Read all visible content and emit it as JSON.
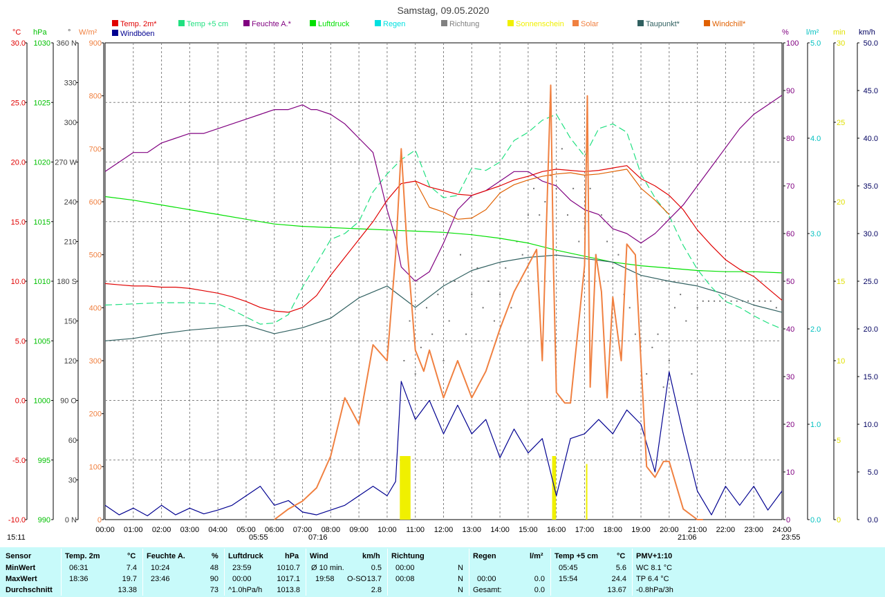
{
  "chart_data": {
    "type": "line",
    "title": "Samstag, 09.05.2020",
    "x_ticks": [
      "00:00",
      "01:00",
      "02:00",
      "03:00",
      "04:00",
      "05:00",
      "06:00",
      "07:00",
      "08:00",
      "09:00",
      "10:00",
      "11:00",
      "12:00",
      "13:00",
      "14:00",
      "15:00",
      "16:00",
      "17:00",
      "18:00",
      "19:00",
      "20:00",
      "21:00",
      "22:00",
      "23:00",
      "24:00"
    ],
    "legend": [
      {
        "name": "Temp. 2m*",
        "color": "#e00000"
      },
      {
        "name": "Temp +5 cm",
        "color": "#20e080"
      },
      {
        "name": "Feuchte A.*",
        "color": "#800080"
      },
      {
        "name": "Luftdruck",
        "color": "#00e000"
      },
      {
        "name": "Regen",
        "color": "#00e0e0"
      },
      {
        "name": "Richtung",
        "color": "#808080"
      },
      {
        "name": "Sonnenschein",
        "color": "#f0f000"
      },
      {
        "name": "Solar",
        "color": "#f08040"
      },
      {
        "name": "Taupunkt*",
        "color": "#306060"
      },
      {
        "name": "Windchill*",
        "color": "#e06000"
      },
      {
        "name": "Windböen",
        "color": "#000090"
      }
    ],
    "axes": {
      "temp": {
        "unit": "°C",
        "color": "#e00000",
        "min": -10,
        "max": 30,
        "ticks": [
          "30.0",
          "25.0",
          "20.0",
          "15.0",
          "10.0",
          "5.0",
          "0.0",
          "-5.0",
          "-10.0"
        ]
      },
      "pressure": {
        "unit": "hPa",
        "color": "#00c000",
        "min": 990,
        "max": 1030,
        "ticks": [
          "1030",
          "1025",
          "1020",
          "1015",
          "1010",
          "1005",
          "1000",
          "995",
          "990"
        ]
      },
      "direction": {
        "unit": "°",
        "color": "#404040",
        "min": 0,
        "max": 360,
        "ticks": [
          "360 N",
          "330",
          "300",
          "270 W",
          "240",
          "210",
          "180 S",
          "150",
          "120",
          "90 O",
          "60",
          "30",
          "0 N"
        ]
      },
      "solar": {
        "unit": "W/m²",
        "color": "#f08040",
        "min": 0,
        "max": 900,
        "ticks": [
          "900",
          "800",
          "700",
          "600",
          "500",
          "400",
          "300",
          "200",
          "100",
          "0"
        ]
      },
      "humidity": {
        "unit": "%",
        "color": "#800080",
        "min": 0,
        "max": 100,
        "ticks": [
          "100",
          "90",
          "80",
          "70",
          "60",
          "50",
          "40",
          "30",
          "20",
          "10",
          "0"
        ]
      },
      "rain": {
        "unit": "l/m²",
        "color": "#00c0c0",
        "min": 0,
        "max": 5,
        "ticks": [
          "5.0",
          "4.0",
          "3.0",
          "2.0",
          "1.0",
          "0.0"
        ]
      },
      "sunshine": {
        "unit": "min",
        "color": "#e0e000",
        "min": 0,
        "max": 30,
        "ticks": [
          "30",
          "25",
          "20",
          "15",
          "10",
          "5",
          "0"
        ]
      },
      "wind": {
        "unit": "km/h",
        "color": "#000060",
        "min": 0,
        "max": 50,
        "ticks": [
          "50.0",
          "45.0",
          "40.0",
          "35.0",
          "30.0",
          "25.0",
          "20.0",
          "15.0",
          "10.0",
          "5.0",
          "0.0"
        ]
      }
    },
    "series": [
      {
        "key": "temp2m",
        "axis": "temp",
        "color": "#e00000",
        "x": [
          0,
          0.5,
          1,
          1.5,
          2,
          2.5,
          3,
          3.5,
          4,
          4.5,
          5,
          5.5,
          6,
          6.5,
          7,
          7.5,
          8,
          8.5,
          9,
          9.5,
          10,
          10.5,
          11,
          11.5,
          12,
          12.5,
          13,
          13.5,
          14,
          14.5,
          15,
          15.5,
          16,
          16.5,
          17,
          17.5,
          18,
          18.5,
          19,
          19.5,
          20,
          20.5,
          21,
          21.5,
          22,
          22.5,
          23,
          23.5,
          24
        ],
        "y": [
          9.8,
          9.7,
          9.6,
          9.6,
          9.5,
          9.5,
          9.4,
          9.2,
          9.0,
          8.7,
          8.3,
          7.8,
          7.5,
          7.4,
          7.8,
          8.8,
          10.5,
          12.0,
          13.5,
          15.0,
          16.8,
          18.2,
          18.4,
          17.9,
          17.6,
          17.3,
          17.2,
          17.6,
          18.0,
          18.5,
          18.8,
          19.2,
          19.4,
          19.3,
          19.2,
          19.3,
          19.5,
          19.7,
          18.6,
          18.0,
          17.2,
          16.0,
          14.3,
          13.0,
          11.8,
          11.0,
          10.4,
          9.4,
          8.4
        ]
      },
      {
        "key": "temp5cm",
        "axis": "temp",
        "color": "#20e080",
        "x": [
          0,
          1,
          2,
          3,
          4,
          4.5,
          5,
          5.5,
          6,
          6.5,
          7,
          7.5,
          8,
          8.5,
          9,
          9.5,
          10,
          10.5,
          11,
          11.5,
          12,
          12.5,
          13,
          13.5,
          14,
          14.5,
          15,
          15.5,
          16,
          16.5,
          17,
          17.5,
          18,
          18.5,
          19,
          19.5,
          20,
          20.5,
          21,
          21.5,
          22,
          22.5,
          23,
          23.5,
          24
        ],
        "y": [
          8.0,
          8.1,
          8.2,
          8.2,
          8.1,
          7.6,
          7.0,
          6.4,
          6.5,
          7.2,
          9.5,
          11.5,
          13.5,
          14.0,
          15.0,
          17.5,
          19.0,
          20.2,
          21.0,
          18.0,
          17.0,
          17.2,
          19.5,
          19.3,
          20.0,
          21.8,
          22.5,
          23.5,
          24.0,
          22.0,
          20.5,
          22.8,
          23.2,
          22.5,
          19.0,
          17.0,
          15.5,
          13.0,
          11.0,
          9.5,
          8.3,
          7.8,
          7.1,
          6.5,
          6.0
        ]
      },
      {
        "key": "humidity",
        "axis": "humidity",
        "color": "#800080",
        "x": [
          0,
          0.5,
          1,
          1.5,
          2,
          2.5,
          3,
          3.5,
          4,
          4.5,
          5,
          5.5,
          6,
          6.5,
          7,
          7.3,
          7.5,
          8,
          8.5,
          9,
          9.5,
          10,
          10.3,
          10.5,
          11,
          11.5,
          12,
          12.5,
          13,
          13.5,
          14,
          14.5,
          15,
          15.5,
          16,
          16.5,
          17,
          17.5,
          18,
          18.5,
          19,
          19.5,
          20,
          20.5,
          21,
          21.5,
          22,
          22.5,
          23,
          23.5,
          24
        ],
        "y": [
          73,
          75,
          77,
          77,
          79,
          80,
          81,
          81,
          82,
          83,
          84,
          85,
          86,
          86,
          87,
          86,
          86,
          85,
          83,
          80,
          77,
          65,
          59,
          53,
          50,
          52,
          58,
          65,
          68,
          69,
          71,
          73,
          73,
          71,
          70,
          67,
          65,
          64,
          61,
          60,
          58,
          60,
          63,
          66,
          70,
          74,
          78,
          82,
          85,
          87,
          89
        ]
      },
      {
        "key": "pressure",
        "axis": "pressure",
        "color": "#00e000",
        "x": [
          0,
          1,
          2,
          3,
          4,
          5,
          6,
          7,
          8,
          9,
          10,
          11,
          12,
          13,
          14,
          15,
          16,
          17,
          18,
          19,
          20,
          21,
          22,
          23,
          24
        ],
        "y": [
          1017.1,
          1016.8,
          1016.4,
          1016.0,
          1015.6,
          1015.2,
          1014.8,
          1014.6,
          1014.5,
          1014.4,
          1014.3,
          1014.2,
          1014.1,
          1013.9,
          1013.6,
          1013.2,
          1012.6,
          1012.1,
          1011.6,
          1011.3,
          1011.1,
          1010.9,
          1010.8,
          1010.8,
          1010.7
        ]
      },
      {
        "key": "dewpoint",
        "axis": "temp",
        "color": "#306060",
        "x": [
          0,
          1,
          2,
          3,
          4,
          5,
          6,
          7,
          8,
          9,
          10,
          11,
          12,
          13,
          14,
          15,
          16,
          17,
          18,
          19,
          20,
          21,
          22,
          23,
          24
        ],
        "y": [
          5.0,
          5.2,
          5.6,
          5.9,
          6.1,
          6.3,
          5.6,
          6.1,
          6.9,
          8.6,
          9.6,
          7.8,
          9.6,
          10.9,
          11.6,
          12.0,
          12.2,
          11.9,
          11.6,
          10.5,
          10.0,
          9.6,
          8.9,
          8.0,
          7.4
        ]
      },
      {
        "key": "solar",
        "axis": "solar",
        "color": "#f08040",
        "x": [
          6,
          6.5,
          7,
          7.5,
          8,
          8.5,
          9,
          9.5,
          10,
          10.3,
          10.5,
          10.7,
          11,
          11.3,
          11.5,
          12,
          12.5,
          13,
          13.5,
          14,
          14.5,
          15,
          15.3,
          15.5,
          15.8,
          15.9,
          16,
          16.3,
          16.5,
          17,
          17.1,
          17.2,
          17.4,
          17.6,
          17.8,
          18,
          18.3,
          18.5,
          18.8,
          19,
          19.2,
          19.5,
          19.8,
          20,
          20.5,
          21,
          21.2
        ],
        "y": [
          0,
          20,
          35,
          60,
          120,
          230,
          180,
          330,
          300,
          500,
          700,
          520,
          320,
          280,
          320,
          230,
          300,
          230,
          280,
          360,
          430,
          480,
          510,
          300,
          820,
          470,
          240,
          220,
          220,
          480,
          800,
          250,
          500,
          430,
          230,
          420,
          300,
          520,
          500,
          300,
          100,
          80,
          110,
          110,
          20,
          0,
          0
        ]
      },
      {
        "key": "windchill",
        "axis": "temp",
        "color": "#e06000",
        "x": [
          11,
          11.5,
          12,
          12.5,
          13,
          13.5,
          14,
          14.5,
          15,
          15.5,
          16,
          16.5,
          17,
          17.5,
          18,
          18.5,
          19,
          19.5,
          20
        ],
        "y": [
          18.4,
          16.2,
          15.8,
          15.2,
          15.3,
          16.0,
          17.4,
          18.1,
          18.5,
          18.8,
          19.0,
          19.1,
          18.9,
          19.0,
          19.2,
          19.4,
          17.8,
          16.8,
          15.6
        ]
      },
      {
        "key": "windgusts",
        "axis": "wind",
        "color": "#000090",
        "x": [
          0,
          0.5,
          1,
          1.5,
          2,
          2.5,
          3,
          3.5,
          4,
          4.5,
          5,
          5.5,
          6,
          6.5,
          7,
          7.5,
          8,
          8.5,
          9,
          9.5,
          10,
          10.3,
          10.5,
          11,
          11.5,
          12,
          12.5,
          13,
          13.5,
          14,
          14.5,
          15,
          15.5,
          16,
          16.5,
          17,
          17.5,
          18,
          18.5,
          19,
          19.5,
          20,
          20.5,
          21,
          21.5,
          22,
          22.5,
          23,
          23.5,
          24
        ],
        "y": [
          1.5,
          0.5,
          1.2,
          0.4,
          1.5,
          0.5,
          1.2,
          0.6,
          1.0,
          1.5,
          2.5,
          3.5,
          1.5,
          2.0,
          0.8,
          0.5,
          1.0,
          1.5,
          2.5,
          3.5,
          2.5,
          4.0,
          14.5,
          10.5,
          12.5,
          9.0,
          12.0,
          9.0,
          10.5,
          6.5,
          9.5,
          7.0,
          8.5,
          2.5,
          8.5,
          9.0,
          10.5,
          9.0,
          11.5,
          10.0,
          5.0,
          15.5,
          9.0,
          3.0,
          0.5,
          3.5,
          1.5,
          3.5,
          1.0,
          3.0
        ]
      }
    ],
    "sunshine_bars": [
      {
        "x": 10.45,
        "w": 0.38,
        "min": 4
      },
      {
        "x": 15.85,
        "w": 0.14,
        "min": 4
      },
      {
        "x": 17.05,
        "w": 0.05,
        "min": 3.5
      }
    ],
    "direction_points": {
      "x": [
        10.6,
        10.8,
        11,
        11.2,
        11.4,
        11.6,
        11.8,
        12,
        12.2,
        12.4,
        12.6,
        12.8,
        13,
        13.2,
        13.4,
        13.6,
        13.8,
        14,
        14.2,
        14.4,
        14.6,
        14.8,
        15,
        15.2,
        15.4,
        15.6,
        15.8,
        16,
        16.2,
        16.4,
        16.6,
        16.8,
        17,
        17.2,
        17.4,
        17.6,
        17.8,
        18,
        18.2,
        18.4,
        18.6,
        18.8,
        19,
        19.2,
        19.4,
        19.6,
        19.8,
        20,
        20.2,
        20.4,
        20.6,
        20.8,
        21,
        21.2,
        21.4,
        21.6,
        21.8,
        22,
        22.2,
        22.4,
        22.6,
        22.8,
        23,
        23.2,
        23.4,
        23.6,
        23.8
      ],
      "y": [
        120,
        150,
        110,
        130,
        160,
        140,
        170,
        120,
        150,
        180,
        200,
        140,
        170,
        190,
        160,
        180,
        150,
        170,
        190,
        160,
        210,
        200,
        230,
        250,
        230,
        240,
        260,
        250,
        280,
        230,
        250,
        210,
        220,
        250,
        200,
        230,
        210,
        190,
        200,
        170,
        160,
        140,
        150,
        110,
        130,
        140,
        100,
        120,
        160,
        170,
        150,
        110,
        160,
        165,
        165,
        165,
        165,
        165,
        165,
        165,
        165,
        165,
        165,
        165,
        165,
        165,
        160
      ]
    },
    "events": [
      {
        "label": "15:11",
        "xpx": 10,
        "color": "#000000"
      },
      {
        "label": "05:55",
        "xpx": 360,
        "color": "#000000"
      },
      {
        "label": "07:16",
        "xpx": 446,
        "color": "#000000"
      },
      {
        "label": "21:06",
        "xpx": 980,
        "color": "#000000"
      },
      {
        "label": "23:55",
        "xpx": 1130,
        "color": "#000000"
      }
    ]
  },
  "stats": {
    "headers": {
      "sensor": "Sensor",
      "temp": "Temp. 2m",
      "temp_unit": "°C",
      "hum": "Feuchte A.",
      "hum_unit": "%",
      "press": "Luftdruck",
      "press_unit": "hPa",
      "wind": "Wind",
      "wind_unit": "km/h",
      "dir": "Richtung",
      "rain": "Regen",
      "rain_unit": "l/m²",
      "temp5": "Temp +5 cm",
      "temp5_unit": "°C",
      "pmv": "PMV+1:10"
    },
    "row_labels": [
      "MinWert",
      "MaxWert",
      "Durchschnitt"
    ],
    "temp": {
      "min_t": "06:31",
      "min_v": "7.4",
      "max_t": "18:36",
      "max_v": "19.7",
      "avg": "13.38"
    },
    "hum": {
      "min_t": "10:24",
      "min_v": "48",
      "max_t": "23:46",
      "max_v": "90",
      "avg": "73"
    },
    "press": {
      "min_t": "23:59",
      "min_v": "1010.7",
      "max_t": "00:00",
      "max_v": "1017.1",
      "trend": "^1.0hPa/h",
      "avg": "1013.8"
    },
    "wind": {
      "r1_l": "Ø 10 min.",
      "r1_v": "0.5",
      "r2_t": "19:58",
      "r2_d": "O-SO",
      "r2_v": "13.7",
      "avg": "2.8"
    },
    "dir": {
      "r1_t": "00:00",
      "r1_v": "N",
      "r2_t": "00:08",
      "r2_v": "N",
      "r3_v": "N"
    },
    "rain": {
      "r2_t": "00:00",
      "r2_v": "0.0",
      "r3_l": "Gesamt:",
      "r3_v": "0.0"
    },
    "temp5": {
      "min_t": "05:45",
      "min_v": "5.6",
      "max_t": "15:54",
      "max_v": "24.4",
      "avg": "13.67"
    },
    "pmv": {
      "r1": "WC 8.1 °C",
      "r2": "TP 6.4 °C",
      "r3": "-0.8hPa/3h"
    }
  }
}
